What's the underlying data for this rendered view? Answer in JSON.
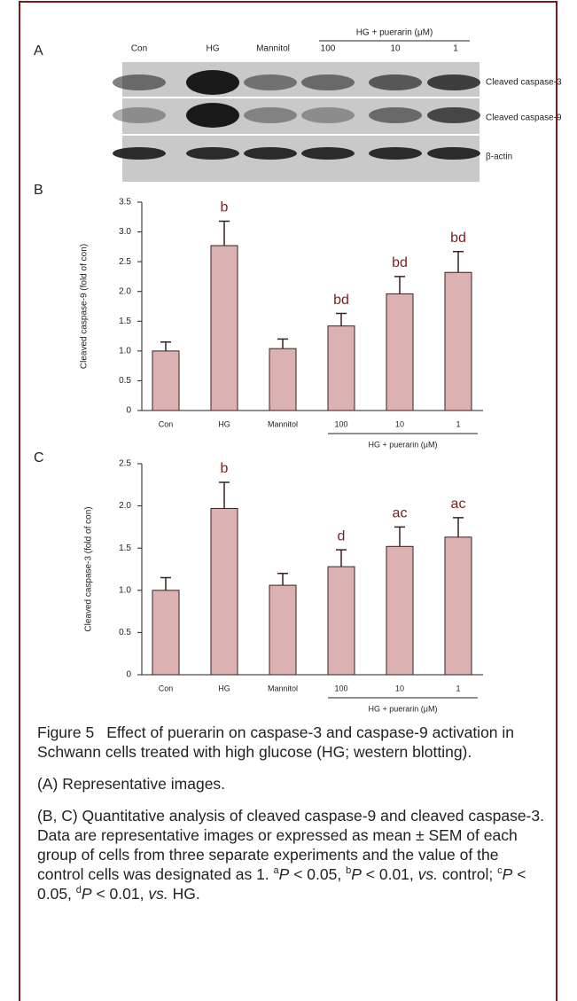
{
  "blot": {
    "panel": "A",
    "lanes": [
      "Con",
      "HG",
      "Mannitol",
      "100",
      "10",
      "1"
    ],
    "group_label": "HG + puerarin (μM)",
    "bands": [
      "Cleaved caspase-3",
      "Cleaved caspase-9",
      "β-actin"
    ]
  },
  "chart_data": [
    {
      "type": "bar",
      "panel": "B",
      "y_label": "Cleaved caspase-9 (fold of con)",
      "categories": [
        "Con",
        "HG",
        "Mannitol",
        "100",
        "10",
        "1"
      ],
      "values": [
        1.0,
        2.77,
        1.04,
        1.42,
        1.96,
        2.32
      ],
      "errors": [
        0.15,
        0.41,
        0.16,
        0.21,
        0.29,
        0.35
      ],
      "annotations": [
        null,
        "b",
        null,
        "bd",
        "bd",
        "bd"
      ],
      "group_label": "HG + puerarin (μM)",
      "color": "#dcb1b1",
      "ylim": [
        0,
        3.5
      ],
      "yticks": [
        0,
        0.5,
        {
          "value": 1,
          "label": "1.0"
        },
        1.5,
        {
          "value": 2,
          "label": "2.0"
        },
        2.5,
        {
          "value": 3,
          "label": "3.0"
        },
        3.5
      ]
    },
    {
      "type": "bar",
      "panel": "C",
      "y_label": "Cleaved caspase-3 (fold of con)",
      "categories": [
        "Con",
        "HG",
        "Mannitol",
        "100",
        "10",
        "1"
      ],
      "values": [
        1.0,
        1.97,
        1.06,
        1.28,
        1.52,
        1.63
      ],
      "errors": [
        0.15,
        0.31,
        0.14,
        0.2,
        0.23,
        0.23
      ],
      "annotations": [
        null,
        "b",
        null,
        "d",
        "ac",
        "ac"
      ],
      "group_label": "HG + puerarin (μM)",
      "color": "#dcb1b1",
      "ylim": [
        0,
        2.5
      ],
      "yticks": [
        0,
        0.5,
        {
          "value": 1,
          "label": "1.0"
        },
        1.5,
        {
          "value": 2,
          "label": "2.0"
        },
        2.5
      ]
    }
  ],
  "caption": {
    "label": "Figure 5",
    "title": "Effect of puerarin on caspase-3 and caspase-9 activation in Schwann cells treated with high glucose (HG; western blotting).",
    "panel_a": "(A) Representative images.",
    "parts": [
      "(B, C) Quantitative analysis of cleaved caspase-9 and cleaved caspase-3. Data are representative images or expressed as mean ± SEM of each group of cells from three separate experiments and the value of the control cells was designated as 1. ",
      "a",
      "P",
      " < 0.05, ",
      "b",
      "P",
      " < 0.01, ",
      "vs.",
      " control; ",
      "c",
      "P",
      " < 0.05, ",
      "d",
      "P",
      " < 0.01, ",
      "vs.",
      " HG."
    ]
  }
}
